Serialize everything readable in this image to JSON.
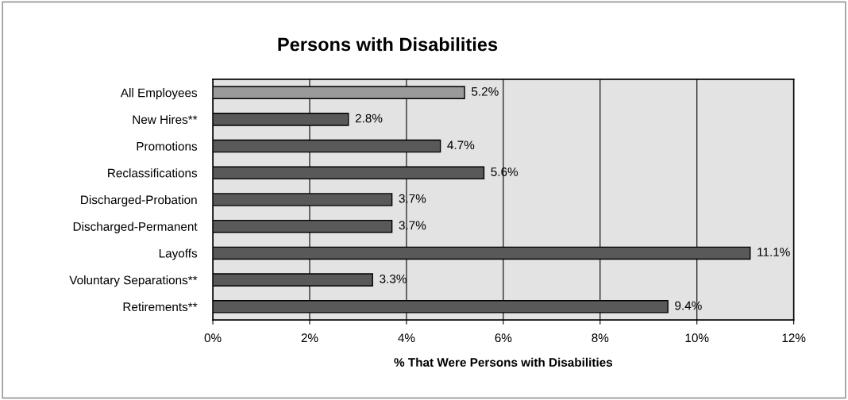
{
  "chart_data": {
    "type": "bar",
    "orientation": "horizontal",
    "title": "Persons with Disabilities",
    "xlabel": "% That Were Persons with Disabilities",
    "categories": [
      "All Employees",
      "New Hires**",
      "Promotions",
      "Reclassifications",
      "Discharged-Probation",
      "Discharged-Permanent",
      "Layoffs",
      "Voluntary Separations**",
      "Retirements**"
    ],
    "values": [
      5.2,
      2.8,
      4.7,
      5.6,
      3.7,
      3.7,
      11.1,
      3.3,
      9.4
    ],
    "value_labels": [
      "5.2%",
      "2.8%",
      "4.7%",
      "5.6%",
      "3.7%",
      "3.7%",
      "11.1%",
      "3.3%",
      "9.4%"
    ],
    "colors": [
      "#9a9a9a",
      "#595959",
      "#595959",
      "#595959",
      "#595959",
      "#595959",
      "#595959",
      "#595959",
      "#595959"
    ],
    "xlim": [
      0,
      12
    ],
    "xticks": [
      {
        "value": 0,
        "label": "0%"
      },
      {
        "value": 2,
        "label": "2%"
      },
      {
        "value": 4,
        "label": "4%"
      },
      {
        "value": 6,
        "label": "6%"
      },
      {
        "value": 8,
        "label": "8%"
      },
      {
        "value": 10,
        "label": "10%"
      },
      {
        "value": 12,
        "label": "12%"
      }
    ],
    "grid": "x",
    "legend": false
  }
}
